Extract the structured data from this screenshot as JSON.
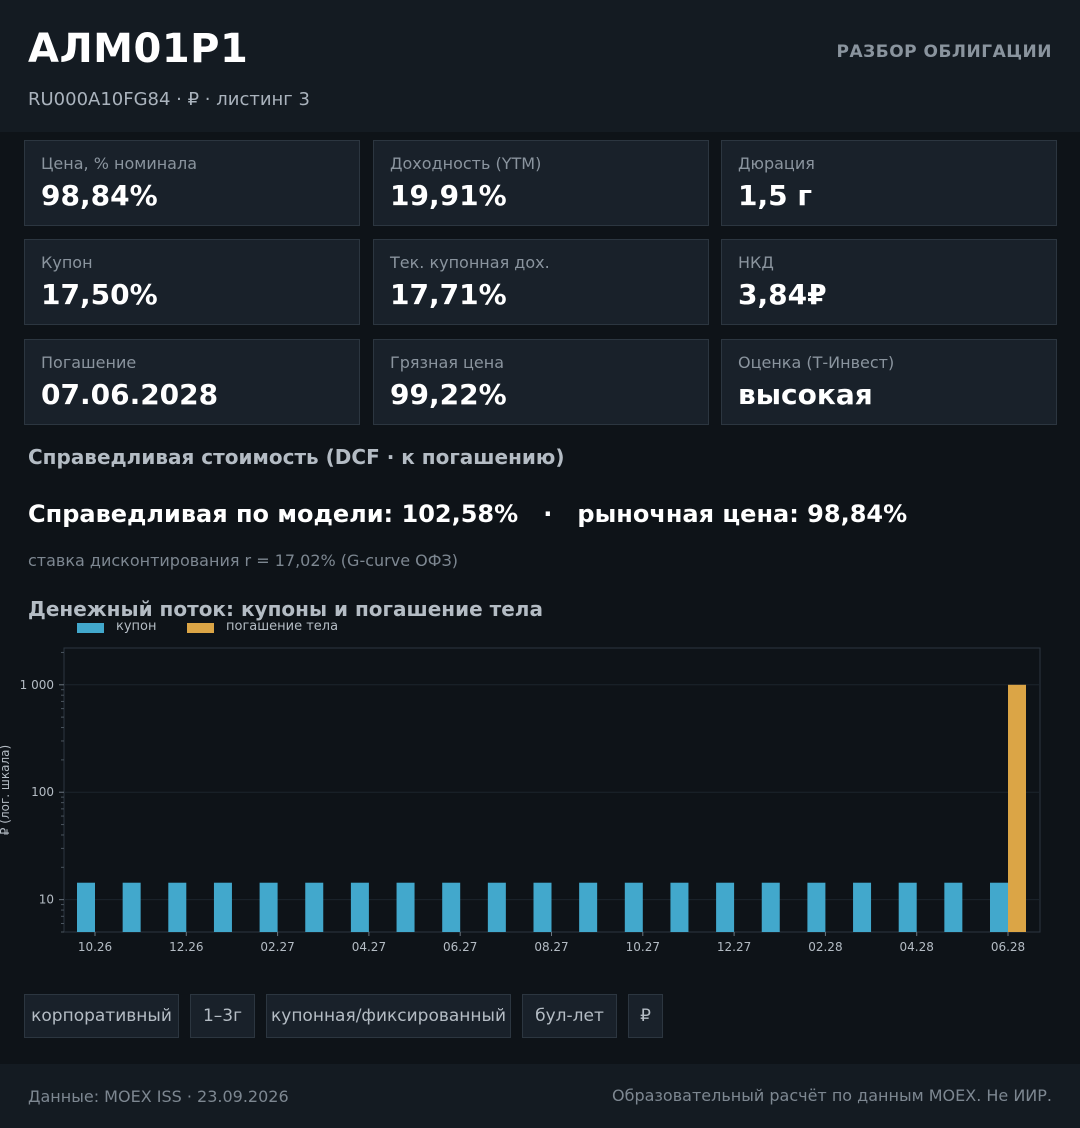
{
  "header": {
    "ticker": "АЛМ01Р1",
    "subtitle": "RU000A10FG84  ·  ₽  ·  листинг 3",
    "section_label": "РАЗБОР ОБЛИГАЦИИ"
  },
  "metrics": [
    {
      "label": "Цена, % номинала",
      "value": "98,84%"
    },
    {
      "label": "Доходность (YTM)",
      "value": "19,91%"
    },
    {
      "label": "Дюрация",
      "value": "1,5 г"
    },
    {
      "label": "Купон",
      "value": "17,50%"
    },
    {
      "label": "Тек. купонная дох.",
      "value": "17,71%"
    },
    {
      "label": "НКД",
      "value": "3,84₽"
    },
    {
      "label": "Погашение",
      "value": "07.06.2028"
    },
    {
      "label": "Грязная цена",
      "value": "99,22%"
    },
    {
      "label": "Оценка (Т-Инвест)",
      "value": "высокая"
    }
  ],
  "dcf": {
    "title": "Справедливая стоимость (DCF · к погашению)",
    "fair_line": "Справедливая по модели: 102,58%   ·   рыночная цена: 98,84%",
    "discount_note": "ставка дисконтирования r = 17,02% (G-curve ОФЗ)"
  },
  "cashflow_title": "Денежный поток: купоны и погашение тела",
  "chart_data": {
    "type": "bar",
    "yscale": "log",
    "ylabel": "₽ (лог. шкала)",
    "ylim": [
      5,
      2200
    ],
    "yticks": [
      10,
      100,
      1000
    ],
    "ytick_labels": [
      "10",
      "100",
      "1 000"
    ],
    "xtick_labels": [
      "10.26",
      "12.26",
      "02.27",
      "04.27",
      "06.27",
      "08.27",
      "10.27",
      "12.27",
      "02.28",
      "04.28",
      "06.28"
    ],
    "categories": [
      "10.26",
      "11.26",
      "12.26",
      "01.27",
      "02.27",
      "03.27",
      "04.27",
      "05.27",
      "06.27",
      "07.27",
      "08.27",
      "09.27",
      "10.27",
      "11.27",
      "12.27",
      "01.28",
      "02.28",
      "03.28",
      "04.28",
      "05.28",
      "06.28"
    ],
    "series": [
      {
        "name": "купон",
        "color": "#42a8cc",
        "values": [
          14.38,
          14.38,
          14.38,
          14.38,
          14.38,
          14.38,
          14.38,
          14.38,
          14.38,
          14.38,
          14.38,
          14.38,
          14.38,
          14.38,
          14.38,
          14.38,
          14.38,
          14.38,
          14.38,
          14.38,
          14.38
        ]
      },
      {
        "name": "погашение тела",
        "color": "#dba546",
        "values": [
          0,
          0,
          0,
          0,
          0,
          0,
          0,
          0,
          0,
          0,
          0,
          0,
          0,
          0,
          0,
          0,
          0,
          0,
          0,
          0,
          1000
        ]
      }
    ],
    "grid": true,
    "legend_position": "top-left"
  },
  "tags": [
    "корпоративный",
    "1–3г",
    "купонная/фиксированный",
    "бул-лет",
    "₽"
  ],
  "footer": {
    "source": "Данные: MOEX ISS · 23.09.2026",
    "disclaimer": "Образовательный расчёт по данным MOEX. Не ИИР."
  }
}
